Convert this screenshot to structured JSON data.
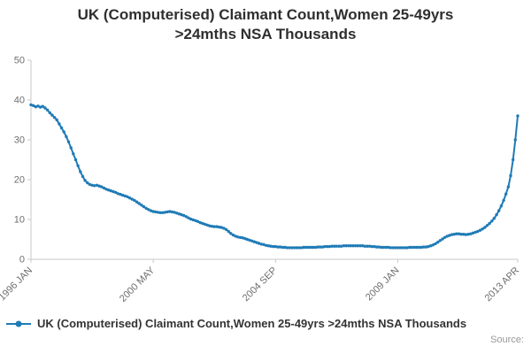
{
  "source": {
    "label": "Source:"
  },
  "chart_data": {
    "type": "line",
    "title_line1": "UK (Computerised) Claimant Count,Women 25-49yrs",
    "title_line2": ">24mths NSA Thousands",
    "xlabel": "",
    "ylabel": "",
    "xlim": [
      1996.0,
      2013.25
    ],
    "ylim": [
      0,
      50
    ],
    "y_ticks": [
      0,
      10,
      20,
      30,
      40,
      50
    ],
    "x_ticks": [
      {
        "label": "1996 JAN",
        "x": 1996.0
      },
      {
        "label": "2000 MAY",
        "x": 2000.333
      },
      {
        "label": "2004 SEP",
        "x": 2004.667
      },
      {
        "label": "2009 JAN",
        "x": 2009.0
      },
      {
        "label": "2013 APR",
        "x": 2013.25
      }
    ],
    "axis_color": "#c9c9c9",
    "tick_label_color": "#6e6e6e",
    "grid": false,
    "legend_position": "bottom-left",
    "series": [
      {
        "name": "UK (Computerised) Claimant Count,Women 25-49yrs >24mths NSA Thousands",
        "color": "#1f7bb6",
        "x_start": 1996.0,
        "x_step": 0.083333,
        "x_unit": "monthly, decimal years",
        "values": [
          38.8,
          38.6,
          38.3,
          38.5,
          38.2,
          38.4,
          38.0,
          37.5,
          36.8,
          36.2,
          35.6,
          35.0,
          34.0,
          33.0,
          32.0,
          30.8,
          29.5,
          28.0,
          26.5,
          25.0,
          23.5,
          22.0,
          20.8,
          19.8,
          19.2,
          18.8,
          18.6,
          18.5,
          18.6,
          18.4,
          18.2,
          17.9,
          17.6,
          17.4,
          17.2,
          17.0,
          16.8,
          16.5,
          16.3,
          16.1,
          15.9,
          15.7,
          15.4,
          15.1,
          14.8,
          14.4,
          14.0,
          13.6,
          13.2,
          12.8,
          12.5,
          12.2,
          12.0,
          11.9,
          11.8,
          11.7,
          11.7,
          11.8,
          11.9,
          12.0,
          11.9,
          11.8,
          11.6,
          11.4,
          11.2,
          11.0,
          10.7,
          10.4,
          10.1,
          9.9,
          9.7,
          9.5,
          9.2,
          9.0,
          8.8,
          8.6,
          8.4,
          8.3,
          8.2,
          8.2,
          8.1,
          8.0,
          7.8,
          7.5,
          7.0,
          6.5,
          6.1,
          5.8,
          5.6,
          5.5,
          5.4,
          5.2,
          5.0,
          4.8,
          4.6,
          4.4,
          4.2,
          4.0,
          3.8,
          3.7,
          3.5,
          3.4,
          3.3,
          3.2,
          3.2,
          3.1,
          3.1,
          3.0,
          3.0,
          2.9,
          2.9,
          2.9,
          2.9,
          2.9,
          2.9,
          2.9,
          3.0,
          3.0,
          3.0,
          3.0,
          3.0,
          3.0,
          3.1,
          3.1,
          3.1,
          3.2,
          3.2,
          3.2,
          3.3,
          3.3,
          3.3,
          3.3,
          3.3,
          3.4,
          3.4,
          3.4,
          3.4,
          3.4,
          3.4,
          3.4,
          3.4,
          3.4,
          3.3,
          3.3,
          3.3,
          3.2,
          3.2,
          3.1,
          3.1,
          3.0,
          3.0,
          3.0,
          3.0,
          2.9,
          2.9,
          2.9,
          2.9,
          2.9,
          2.9,
          2.9,
          2.9,
          3.0,
          3.0,
          3.0,
          3.0,
          3.0,
          3.0,
          3.1,
          3.1,
          3.2,
          3.4,
          3.6,
          3.9,
          4.3,
          4.7,
          5.1,
          5.5,
          5.8,
          6.0,
          6.2,
          6.3,
          6.4,
          6.4,
          6.3,
          6.3,
          6.2,
          6.3,
          6.4,
          6.6,
          6.8,
          7.0,
          7.3,
          7.6,
          8.0,
          8.5,
          9.0,
          9.6,
          10.3,
          11.2,
          12.2,
          13.4,
          14.8,
          16.4,
          18.2,
          21.0,
          25.0,
          30.0,
          36.0
        ]
      }
    ]
  }
}
